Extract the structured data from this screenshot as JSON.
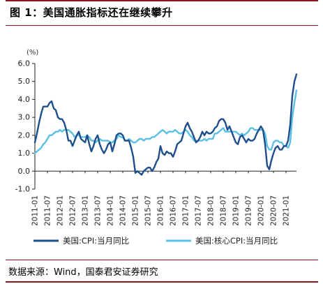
{
  "figure": {
    "title": "图 1：美国通胀指标还在继续攀升",
    "source": "数据来源：Wind，国泰君安证券研究"
  },
  "chart_data": {
    "type": "line",
    "unit_label": "(%)",
    "ylim": [
      -1.0,
      6.0
    ],
    "yticks": [
      "6.0",
      "5.0",
      "4.0",
      "3.0",
      "2.0",
      "1.0",
      "0.0",
      "-1.0"
    ],
    "xticks": [
      "2011-01",
      "2011-07",
      "2012-01",
      "2012-07",
      "2013-01",
      "2013-07",
      "2014-01",
      "2014-07",
      "2015-01",
      "2015-07",
      "2016-01",
      "2016-07",
      "2017-01",
      "2017-07",
      "2018-01",
      "2018-07",
      "2019-01",
      "2019-07",
      "2020-01",
      "2020-07",
      "2021-01"
    ],
    "legend_position": "bottom",
    "grid": false,
    "colors": {
      "cpi": "#1F4E8C",
      "core": "#5BC0E6"
    },
    "x_start": "2011-01",
    "x_end": "2021-06",
    "series": [
      {
        "name": "美国:CPI:当月同比",
        "color": "#1F4E8C",
        "values": [
          1.6,
          2.1,
          2.7,
          3.2,
          3.6,
          3.6,
          3.6,
          3.8,
          3.9,
          3.5,
          3.4,
          3.0,
          2.9,
          2.9,
          2.7,
          2.3,
          1.7,
          1.7,
          1.4,
          1.7,
          2.0,
          2.2,
          1.8,
          1.7,
          1.6,
          2.0,
          1.5,
          1.1,
          1.4,
          1.8,
          2.0,
          1.5,
          1.2,
          1.0,
          1.2,
          1.5,
          1.6,
          1.1,
          1.5,
          2.0,
          2.1,
          2.1,
          2.0,
          1.7,
          1.7,
          1.7,
          1.3,
          0.8,
          -0.1,
          0.0,
          -0.1,
          -0.2,
          0.0,
          0.1,
          0.2,
          0.2,
          0.0,
          0.2,
          0.5,
          0.7,
          1.4,
          1.0,
          0.9,
          1.1,
          1.0,
          1.0,
          0.8,
          1.1,
          1.5,
          1.6,
          1.7,
          2.1,
          2.5,
          2.7,
          2.4,
          2.2,
          1.9,
          1.6,
          1.7,
          1.9,
          2.2,
          2.0,
          2.2,
          2.1,
          2.1,
          2.2,
          2.4,
          2.5,
          2.8,
          2.9,
          2.9,
          2.7,
          2.3,
          2.5,
          2.2,
          1.9,
          1.6,
          1.5,
          1.9,
          2.0,
          1.8,
          1.6,
          1.8,
          1.7,
          1.7,
          1.8,
          2.1,
          2.3,
          2.5,
          2.3,
          1.5,
          0.3,
          0.1,
          0.6,
          1.0,
          1.3,
          1.4,
          1.2,
          1.2,
          1.4,
          1.4,
          1.7,
          2.6,
          4.2,
          5.0,
          5.4
        ]
      },
      {
        "name": "美国:核心CPI:当月同比",
        "color": "#5BC0E6",
        "values": [
          1.0,
          1.1,
          1.2,
          1.3,
          1.5,
          1.6,
          1.8,
          2.0,
          2.0,
          2.1,
          2.2,
          2.2,
          2.3,
          2.2,
          2.3,
          2.3,
          2.3,
          2.2,
          2.1,
          1.9,
          2.0,
          2.0,
          1.9,
          1.9,
          1.9,
          2.0,
          1.9,
          1.7,
          1.7,
          1.6,
          1.7,
          1.8,
          1.7,
          1.7,
          1.7,
          1.7,
          1.6,
          1.6,
          1.7,
          1.8,
          2.0,
          1.9,
          1.9,
          1.7,
          1.7,
          1.8,
          1.7,
          1.6,
          1.6,
          1.7,
          1.8,
          1.8,
          1.7,
          1.8,
          1.8,
          1.8,
          1.9,
          1.9,
          2.0,
          2.1,
          2.2,
          2.3,
          2.2,
          2.1,
          2.2,
          2.2,
          2.2,
          2.3,
          2.2,
          2.1,
          2.1,
          2.2,
          2.3,
          2.2,
          2.0,
          1.9,
          1.7,
          1.7,
          1.7,
          1.7,
          1.7,
          1.8,
          1.7,
          1.8,
          1.8,
          1.8,
          2.1,
          2.1,
          2.2,
          2.3,
          2.4,
          2.2,
          2.2,
          2.2,
          2.2,
          2.2,
          2.2,
          2.1,
          2.0,
          2.1,
          2.0,
          2.1,
          2.2,
          2.4,
          2.4,
          2.3,
          2.3,
          2.3,
          2.3,
          2.3,
          2.1,
          1.4,
          1.2,
          1.2,
          1.6,
          1.7,
          1.7,
          1.6,
          1.6,
          1.4,
          1.4,
          1.3,
          1.6,
          3.0,
          3.8,
          4.5
        ]
      }
    ]
  }
}
